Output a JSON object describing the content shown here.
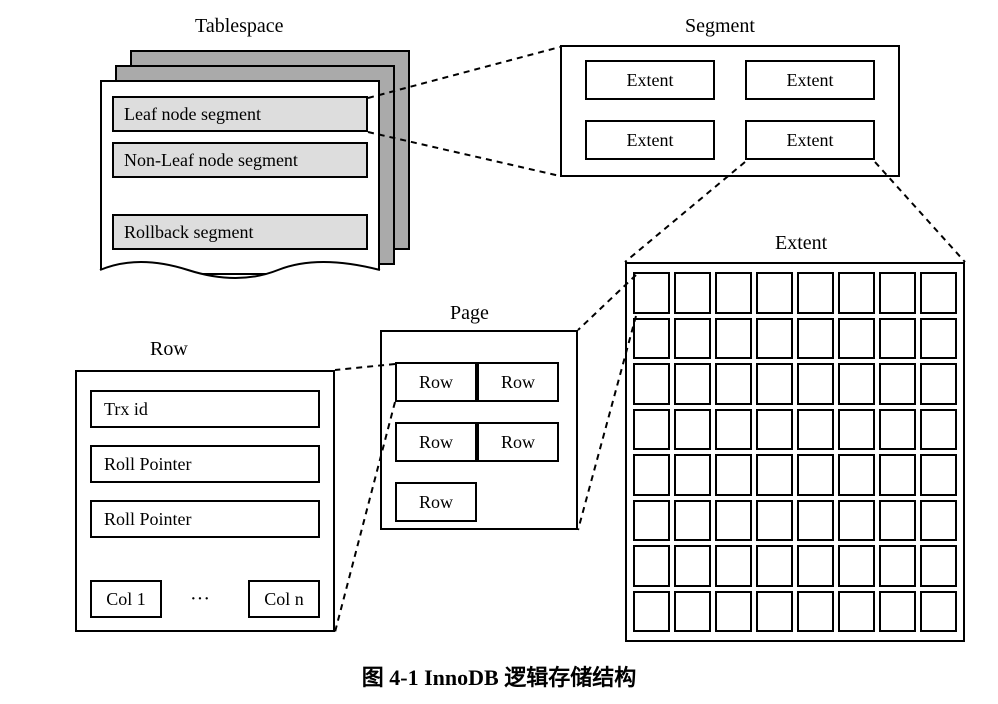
{
  "labels": {
    "tablespace": "Tablespace",
    "segment": "Segment",
    "extent": "Extent",
    "page": "Page",
    "row": "Row"
  },
  "tablespace": {
    "segments": [
      "Leaf node segment",
      "Non-Leaf node segment",
      "Rollback segment"
    ]
  },
  "segment": {
    "extents": [
      "Extent",
      "Extent",
      "Extent",
      "Extent"
    ]
  },
  "extent_grid": {
    "rows": 8,
    "cols": 8
  },
  "page": {
    "rows": [
      "Row",
      "Row",
      "Row",
      "Row",
      "Row"
    ]
  },
  "row": {
    "items": [
      "Trx id",
      "Roll Pointer",
      "Roll Pointer"
    ],
    "col_first": "Col 1",
    "col_dots": "···",
    "col_last": "Col n"
  },
  "caption": "图 4-1  InnoDB 逻辑存储结构",
  "style": {
    "border_color": "#000000",
    "sheet_gray": "#aaaaaa",
    "seg_fill": "#dddddd",
    "background": "#ffffff",
    "dash": "6,5",
    "font_family": "Times New Roman, serif",
    "label_fontsize": 20,
    "cell_fontsize": 18,
    "caption_fontsize": 22
  }
}
